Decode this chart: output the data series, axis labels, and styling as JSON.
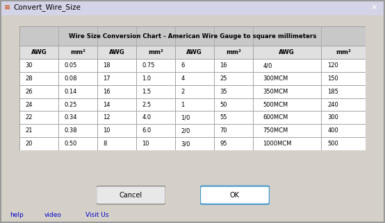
{
  "title": "Wire Size Conversion Chart - American Wire Gauge to square millimeters",
  "col_headers": [
    "AWG",
    "mm²",
    "AWG",
    "mm²",
    "AWG",
    "mm²",
    "AWG",
    "mm²"
  ],
  "rows": [
    [
      "30",
      "0.05",
      "18",
      "0.75",
      "6",
      "16",
      "4/0",
      "120"
    ],
    [
      "28",
      "0.08",
      "17",
      "1.0",
      "4",
      "25",
      "300MCM",
      "150"
    ],
    [
      "26",
      "0.14",
      "16",
      "1.5",
      "2",
      "35",
      "350MCM",
      "185"
    ],
    [
      "24",
      "0.25",
      "14",
      "2.5",
      "1",
      "50",
      "500MCM",
      "240"
    ],
    [
      "22",
      "0.34",
      "12",
      "4.0",
      "1/0",
      "55",
      "600MCM",
      "300"
    ],
    [
      "21",
      "0.38",
      "10",
      "6.0",
      "2/0",
      "70",
      "750MCM",
      "400"
    ],
    [
      "20",
      "0.50",
      "8",
      "10",
      "3/0",
      "95",
      "1000MCM",
      "500"
    ]
  ],
  "window_title": "Convert_Wire_Size",
  "window_bg": "#d4d0c8",
  "table_bg": "#e8e8e8",
  "header_row_bg": "#c8c8c8",
  "col_header_bg": "#e0e0e0",
  "row_even_bg": "#f0f0f0",
  "row_odd_bg": "#ffffff",
  "border_color": "#a0a0a0",
  "title_bar_bg": "#0055aa",
  "cancel_btn_label": "Cancel",
  "ok_btn_label": "OK",
  "links": [
    "help",
    "video",
    "Visit Us"
  ],
  "link_color": "#0000cc",
  "ok_border_color": "#4499cc",
  "fig_width": 5.54,
  "fig_height": 3.22
}
